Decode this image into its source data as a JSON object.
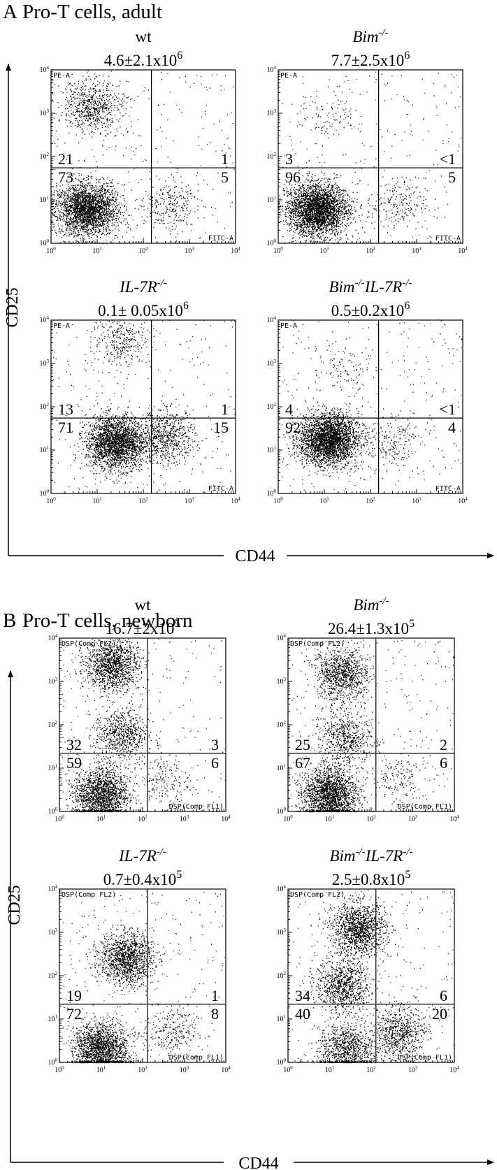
{
  "figure": {
    "sections": [
      {
        "letter": "A",
        "title": "Pro-T cells, adult",
        "y_axis_label": "CD25",
        "x_axis_label": "CD44"
      },
      {
        "letter": "B",
        "title": "Pro-T cells, newborn",
        "y_axis_label": "CD25",
        "x_axis_label": "CD44"
      }
    ],
    "exponent_6": "6",
    "exponent_5": "5",
    "superscript_ko": "-/-"
  },
  "chart_data": [
    {
      "type": "scatter",
      "panel": "A-wt",
      "genotype": "wt",
      "cell_count": "4.6±2.1x10",
      "cell_count_exponent": "6",
      "xlabel": "CD44",
      "ylabel": "CD25",
      "x_scale": "log",
      "y_scale": "log",
      "xlim": [
        1,
        10000
      ],
      "ylim": [
        1,
        10000
      ],
      "gate_x": 150,
      "gate_y": 55,
      "channel_y": "PE-A",
      "channel_x": "FITC-A",
      "quadrants": {
        "upper_left": "21",
        "upper_right": "1",
        "lower_left": "73",
        "lower_right": "5"
      },
      "x_tick_labels": [
        "10^0",
        "10^1",
        "10^2",
        "10^3",
        "10^4"
      ],
      "y_tick_labels": [
        "10^0",
        "10^1",
        "10^2",
        "10^3",
        "10^4"
      ],
      "clusters": [
        {
          "x": 6,
          "y": 6,
          "n": 2600
        },
        {
          "x": 8,
          "y": 1500,
          "n": 650
        },
        {
          "x": 350,
          "y": 8,
          "n": 250
        }
      ]
    },
    {
      "type": "scatter",
      "panel": "A-Bim",
      "genotype": "Bim",
      "cell_count": "7.7±2.5x10",
      "cell_count_exponent": "6",
      "xlabel": "CD44",
      "ylabel": "CD25",
      "x_scale": "log",
      "y_scale": "log",
      "xlim": [
        1,
        10000
      ],
      "ylim": [
        1,
        10000
      ],
      "gate_x": 150,
      "gate_y": 55,
      "channel_y": "PE-A",
      "channel_x": "FITC-A",
      "quadrants": {
        "upper_left": "3",
        "upper_right": "<1",
        "lower_left": "96",
        "lower_right": "5"
      },
      "x_tick_labels": [
        "10^0",
        "10^1",
        "10^2",
        "10^3",
        "10^4"
      ],
      "y_tick_labels": [
        "10^0",
        "10^1",
        "10^2",
        "10^3",
        "10^4"
      ],
      "clusters": [
        {
          "x": 7,
          "y": 6,
          "n": 3000
        },
        {
          "x": 12,
          "y": 800,
          "n": 70
        },
        {
          "x": 350,
          "y": 8,
          "n": 200
        }
      ]
    },
    {
      "type": "scatter",
      "panel": "A-IL7R",
      "genotype": "IL-7R",
      "cell_count": "0.1± 0.05x10",
      "cell_count_exponent": "6",
      "xlabel": "CD44",
      "ylabel": "CD25",
      "x_scale": "log",
      "y_scale": "log",
      "xlim": [
        1,
        10000
      ],
      "ylim": [
        1,
        10000
      ],
      "gate_x": 150,
      "gate_y": 55,
      "channel_y": "PE-A",
      "channel_x": "FITC-A",
      "quadrants": {
        "upper_left": "13",
        "upper_right": "1",
        "lower_left": "71",
        "lower_right": "15"
      },
      "x_tick_labels": [
        "10^0",
        "10^1",
        "10^2",
        "10^3",
        "10^4"
      ],
      "y_tick_labels": [
        "10^0",
        "10^1",
        "10^2",
        "10^3",
        "10^4"
      ],
      "clusters": [
        {
          "x": 25,
          "y": 15,
          "n": 2400
        },
        {
          "x": 35,
          "y": 3500,
          "n": 300
        },
        {
          "x": 300,
          "y": 20,
          "n": 700
        }
      ]
    },
    {
      "type": "scatter",
      "panel": "A-BimIL7R",
      "genotype": "Bim IL-7R",
      "cell_count": "0.5±0.2x10",
      "cell_count_exponent": "6",
      "xlabel": "CD44",
      "ylabel": "CD25",
      "x_scale": "log",
      "y_scale": "log",
      "xlim": [
        1,
        10000
      ],
      "ylim": [
        1,
        10000
      ],
      "gate_x": 150,
      "gate_y": 55,
      "channel_y": "PE-A",
      "channel_x": "FITC-A",
      "quadrants": {
        "upper_left": "4",
        "upper_right": "<1",
        "lower_left": "92",
        "lower_right": "4"
      },
      "x_tick_labels": [
        "10^0",
        "10^1",
        "10^2",
        "10^3",
        "10^4"
      ],
      "y_tick_labels": [
        "10^0",
        "10^1",
        "10^2",
        "10^3",
        "10^4"
      ],
      "clusters": [
        {
          "x": 12,
          "y": 18,
          "n": 3000
        },
        {
          "x": 25,
          "y": 800,
          "n": 90
        },
        {
          "x": 300,
          "y": 15,
          "n": 200
        }
      ]
    },
    {
      "type": "scatter",
      "panel": "B-wt",
      "genotype": "wt",
      "cell_count": "16.7±2x10",
      "cell_count_exponent": "5",
      "xlabel": "CD44",
      "ylabel": "CD25",
      "x_scale": "log",
      "y_scale": "log",
      "xlim": [
        1,
        10000
      ],
      "ylim": [
        1,
        10000
      ],
      "gate_x": 130,
      "gate_y": 22,
      "channel_y": "DSP(Comp FL2)",
      "channel_x": "DSP(Comp FL1)",
      "quadrants": {
        "upper_left": "32",
        "upper_right": "3",
        "lower_left": "59",
        "lower_right": "6"
      },
      "x_tick_labels": [
        "10^0",
        "10^1",
        "10^2",
        "10^3",
        "10^4"
      ],
      "y_tick_labels": [
        "10^0",
        "10^1",
        "10^2",
        "10^3",
        "10^4"
      ],
      "clusters": [
        {
          "x": 10,
          "y": 2.5,
          "n": 1700
        },
        {
          "x": 18,
          "y": 2500,
          "n": 1300
        },
        {
          "x": 30,
          "y": 60,
          "n": 700
        },
        {
          "x": 300,
          "y": 5,
          "n": 150
        }
      ]
    },
    {
      "type": "scatter",
      "panel": "B-Bim",
      "genotype": "Bim",
      "cell_count": "26.4±1.3x10",
      "cell_count_exponent": "5",
      "xlabel": "CD44",
      "ylabel": "CD25",
      "x_scale": "log",
      "y_scale": "log",
      "xlim": [
        1,
        10000
      ],
      "ylim": [
        1,
        10000
      ],
      "gate_x": 130,
      "gate_y": 22,
      "channel_y": "DSP(Comp FL2)",
      "channel_x": "DSP(Comp FL1)",
      "quadrants": {
        "upper_left": "25",
        "upper_right": "2",
        "lower_left": "67",
        "lower_right": "6"
      },
      "x_tick_labels": [
        "10^0",
        "10^1",
        "10^2",
        "10^3",
        "10^4"
      ],
      "y_tick_labels": [
        "10^0",
        "10^1",
        "10^2",
        "10^3",
        "10^4"
      ],
      "clusters": [
        {
          "x": 10,
          "y": 2.5,
          "n": 1900
        },
        {
          "x": 20,
          "y": 1500,
          "n": 1000
        },
        {
          "x": 25,
          "y": 50,
          "n": 600
        },
        {
          "x": 400,
          "y": 6,
          "n": 150
        }
      ]
    },
    {
      "type": "scatter",
      "panel": "B-IL7R",
      "genotype": "IL-7R",
      "cell_count": "0.7±0.4x10",
      "cell_count_exponent": "5",
      "xlabel": "CD44",
      "ylabel": "CD25",
      "x_scale": "log",
      "y_scale": "log",
      "xlim": [
        1,
        10000
      ],
      "ylim": [
        1,
        10000
      ],
      "gate_x": 130,
      "gate_y": 22,
      "channel_y": "DSP(Comp FL2)",
      "channel_x": "DSP(Comp FL1)",
      "quadrants": {
        "upper_left": "19",
        "upper_right": "1",
        "lower_left": "72",
        "lower_right": "8"
      },
      "x_tick_labels": [
        "10^0",
        "10^1",
        "10^2",
        "10^3",
        "10^4"
      ],
      "y_tick_labels": [
        "10^0",
        "10^1",
        "10^2",
        "10^3",
        "10^4"
      ],
      "clusters": [
        {
          "x": 10,
          "y": 2,
          "n": 1800
        },
        {
          "x": 40,
          "y": 250,
          "n": 1300
        },
        {
          "x": 450,
          "y": 5,
          "n": 250
        }
      ]
    },
    {
      "type": "scatter",
      "panel": "B-BimIL7R",
      "genotype": "Bim IL-7R",
      "cell_count": "2.5±0.8x10",
      "cell_count_exponent": "5",
      "xlabel": "CD44",
      "ylabel": "CD25",
      "x_scale": "log",
      "y_scale": "log",
      "xlim": [
        1,
        10000
      ],
      "ylim": [
        1,
        10000
      ],
      "gate_x": 130,
      "gate_y": 22,
      "channel_y": "DSP(Comp FL2)",
      "channel_x": "DSP(Comp FL1)",
      "quadrants": {
        "upper_left": "34",
        "upper_right": "6",
        "lower_left": "40",
        "lower_right": "20"
      },
      "x_tick_labels": [
        "10^0",
        "10^1",
        "10^2",
        "10^3",
        "10^4"
      ],
      "y_tick_labels": [
        "10^0",
        "10^1",
        "10^2",
        "10^3",
        "10^4"
      ],
      "clusters": [
        {
          "x": 50,
          "y": 1200,
          "n": 1300
        },
        {
          "x": 20,
          "y": 60,
          "n": 900
        },
        {
          "x": 25,
          "y": 2,
          "n": 900
        },
        {
          "x": 450,
          "y": 5,
          "n": 700
        }
      ]
    }
  ]
}
